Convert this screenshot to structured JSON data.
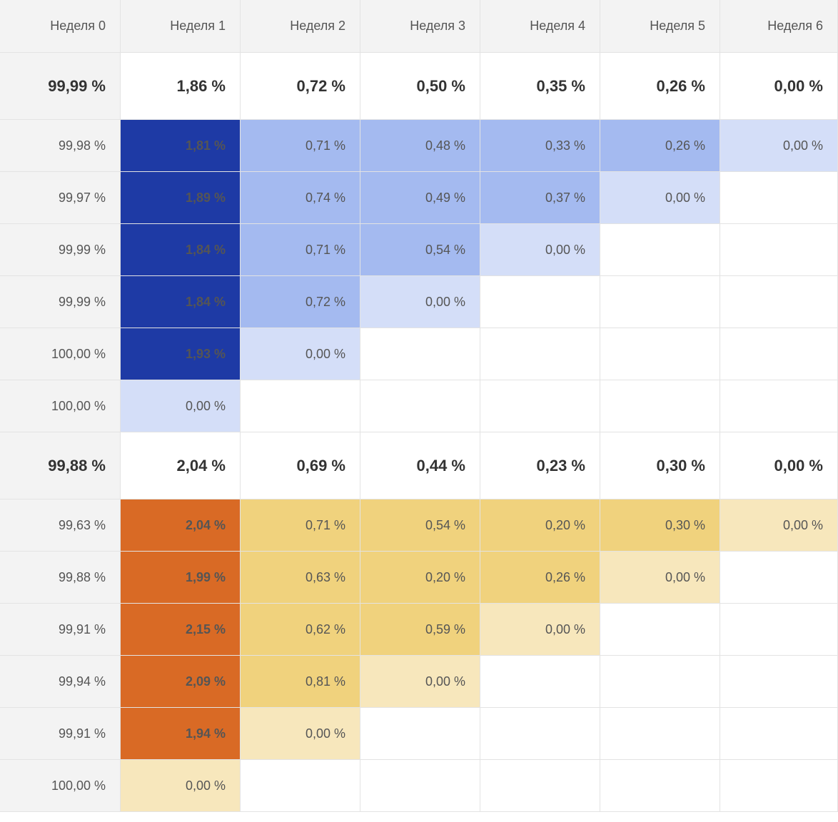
{
  "colors": {
    "header_bg": "#f3f3f3",
    "blue_dark": "#1e3aa5",
    "blue_mid": "#a4baf0",
    "blue_light": "#d4def8",
    "orange_dark": "#d96a25",
    "yellow_mid": "#f0d27d",
    "yellow_light": "#f7e7bc",
    "white": "#ffffff"
  },
  "columns": [
    "Неделя 0",
    "Неделя 1",
    "Неделя 2",
    "Неделя 3",
    "Неделя 4",
    "Неделя 5",
    "Неделя 6"
  ],
  "groups": [
    {
      "name": "blue",
      "total": [
        "99,99 %",
        "1,86 %",
        "0,72 %",
        "0,50 %",
        "0,35 %",
        "0,26 %",
        "0,00 %"
      ],
      "rows": [
        [
          "99,98 %",
          "1,81 %",
          "0,71 %",
          "0,48 %",
          "0,33 %",
          "0,26 %",
          "0,00 %"
        ],
        [
          "99,97 %",
          "1,89 %",
          "0,74 %",
          "0,49 %",
          "0,37 %",
          "0,00 %",
          ""
        ],
        [
          "99,99 %",
          "1,84 %",
          "0,71 %",
          "0,54 %",
          "0,00 %",
          "",
          ""
        ],
        [
          "99,99 %",
          "1,84 %",
          "0,72 %",
          "0,00 %",
          "",
          "",
          ""
        ],
        [
          "100,00 %",
          "1,93 %",
          "0,00 %",
          "",
          "",
          "",
          ""
        ],
        [
          "100,00 %",
          "0,00 %",
          "",
          "",
          "",
          "",
          ""
        ]
      ]
    },
    {
      "name": "orange",
      "total": [
        "99,88 %",
        "2,04 %",
        "0,69 %",
        "0,44 %",
        "0,23 %",
        "0,30 %",
        "0,00 %"
      ],
      "rows": [
        [
          "99,63 %",
          "2,04 %",
          "0,71 %",
          "0,54 %",
          "0,20 %",
          "0,30 %",
          "0,00 %"
        ],
        [
          "99,88 %",
          "1,99 %",
          "0,63 %",
          "0,20 %",
          "0,26 %",
          "0,00 %",
          ""
        ],
        [
          "99,91 %",
          "2,15 %",
          "0,62 %",
          "0,59 %",
          "0,00 %",
          "",
          ""
        ],
        [
          "99,94 %",
          "2,09 %",
          "0,81 %",
          "0,00 %",
          "",
          "",
          ""
        ],
        [
          "99,91 %",
          "1,94 %",
          "0,00 %",
          "",
          "",
          "",
          ""
        ],
        [
          "100,00 %",
          "0,00 %",
          "",
          "",
          "",
          "",
          ""
        ]
      ]
    }
  ]
}
